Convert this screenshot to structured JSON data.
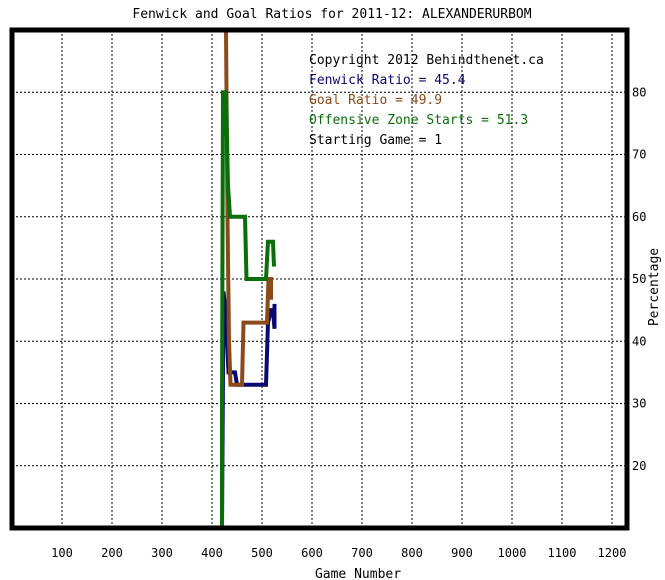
{
  "colors": {
    "fenwick": "#0a0a6e",
    "goal": "#8b4a1a",
    "ozs": "#0a6e0a",
    "frame": "#000000",
    "grid": "#000000"
  },
  "chart_data": {
    "type": "line",
    "title": "Fenwick and Goal Ratios for 2011-12: ALEXANDERURBOM",
    "xlabel": "Game Number",
    "ylabel": "Percentage",
    "xlim": [
      0,
      1230
    ],
    "ylim": [
      10,
      90
    ],
    "grid": true,
    "xticks": [
      100,
      200,
      300,
      400,
      500,
      600,
      700,
      800,
      900,
      1000,
      1100,
      1200
    ],
    "yticks": [
      20,
      30,
      40,
      50,
      60,
      70,
      80
    ],
    "xgrid": [
      100,
      200,
      300,
      400,
      500,
      600,
      700,
      800,
      900,
      1000,
      1100,
      1200
    ],
    "ygrid": [
      10,
      20,
      30,
      40,
      50,
      60,
      70,
      80,
      90
    ],
    "info": {
      "copyright": "Copyright 2012 Behindthenet.ca",
      "fenwick": "Fenwick Ratio = 45.4",
      "goal": "Goal Ratio = 49.9",
      "ozs": "Offensive Zone Starts = 51.3",
      "start": "Starting Game = 1"
    },
    "series": [
      {
        "key": "fenwick",
        "points": [
          [
            420,
            10
          ],
          [
            423,
            48
          ],
          [
            427,
            45
          ],
          [
            430,
            40
          ],
          [
            433,
            35
          ],
          [
            446,
            35
          ],
          [
            450,
            33
          ],
          [
            508,
            33
          ],
          [
            512,
            43
          ],
          [
            518,
            45
          ],
          [
            522,
            45
          ],
          [
            525,
            42
          ],
          [
            525,
            46
          ]
        ]
      },
      {
        "key": "goal",
        "points": [
          [
            425,
            90
          ],
          [
            428,
            90
          ],
          [
            431,
            60
          ],
          [
            434,
            40
          ],
          [
            437,
            33
          ],
          [
            460,
            33
          ],
          [
            463,
            43
          ],
          [
            500,
            43
          ],
          [
            510,
            43
          ],
          [
            513,
            50
          ],
          [
            518,
            50
          ],
          [
            518,
            47
          ],
          [
            522,
            47
          ]
        ]
      },
      {
        "key": "ozs",
        "points": [
          [
            420,
            10
          ],
          [
            420,
            30
          ],
          [
            422,
            80
          ],
          [
            428,
            80
          ],
          [
            432,
            65
          ],
          [
            436,
            60
          ],
          [
            466,
            60
          ],
          [
            469,
            50
          ],
          [
            503,
            50
          ],
          [
            508,
            50
          ],
          [
            512,
            56
          ],
          [
            522,
            56
          ],
          [
            524,
            52
          ]
        ]
      }
    ]
  }
}
